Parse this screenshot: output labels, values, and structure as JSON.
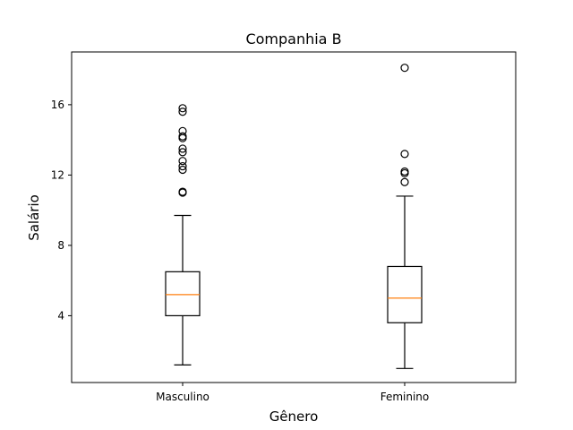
{
  "chart_data": {
    "type": "boxplot",
    "title": "Companhia B",
    "xlabel": "Gênero",
    "ylabel": "Salário",
    "ylim": [
      0.2,
      19.0
    ],
    "yticks": [
      4,
      8,
      12,
      16
    ],
    "grid": false,
    "categories": [
      "Masculino",
      "Feminino"
    ],
    "boxes": [
      {
        "category": "Masculino",
        "whisker_low": 1.2,
        "q1": 4.0,
        "median": 5.2,
        "q3": 6.5,
        "whisker_high": 9.7,
        "outliers": [
          11.0,
          11.05,
          12.3,
          12.5,
          12.8,
          13.3,
          13.5,
          14.1,
          14.2,
          14.5,
          15.6,
          15.8
        ]
      },
      {
        "category": "Feminino",
        "whisker_low": 1.0,
        "q1": 3.6,
        "median": 5.0,
        "q3": 6.8,
        "whisker_high": 10.8,
        "outliers": [
          11.6,
          12.1,
          12.2,
          13.2,
          18.1
        ]
      }
    ],
    "colors": {
      "box": "#000000",
      "median": "#ff7f0e",
      "outlier_edge": "#000000"
    }
  }
}
